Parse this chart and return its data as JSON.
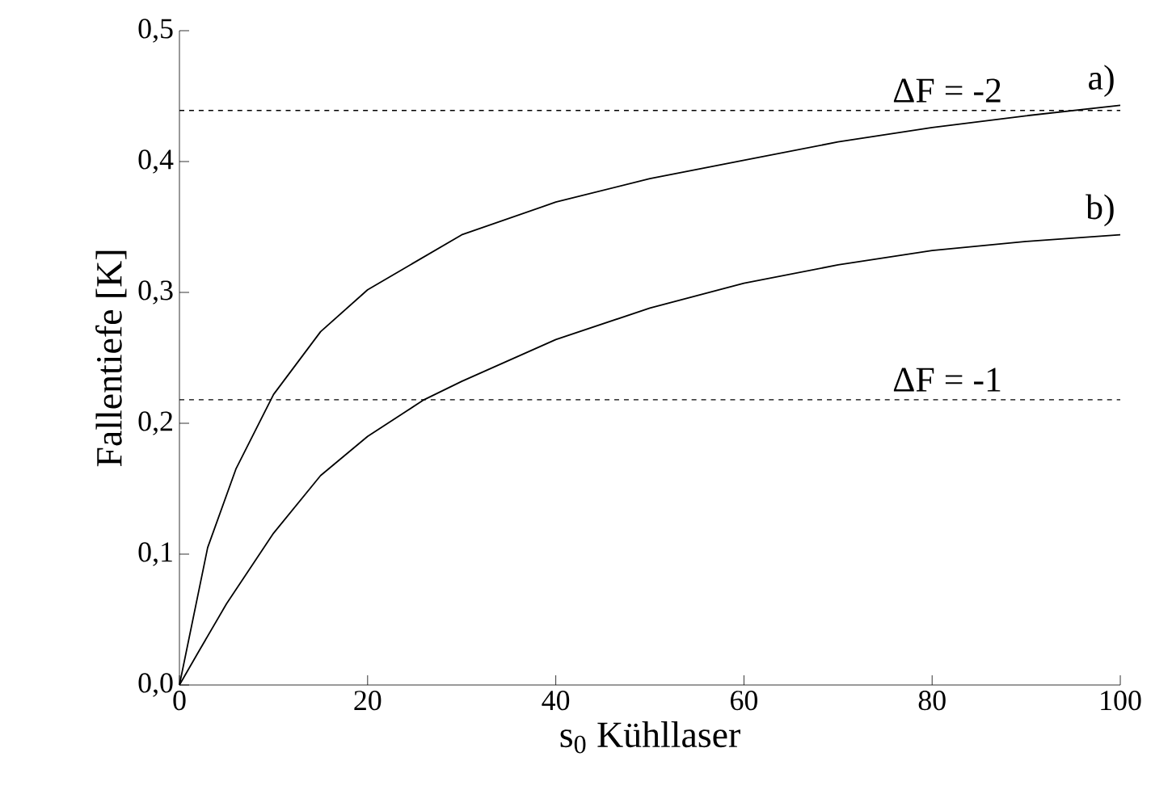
{
  "chart_data": {
    "type": "line",
    "xlabel": "s$_{0}$ Kühllaser",
    "ylabel": "Fallentiefe [K]",
    "xlim": [
      0,
      100
    ],
    "ylim": [
      0,
      0.5
    ],
    "xticks": [
      0,
      20,
      40,
      60,
      80,
      100
    ],
    "yticks": [
      {
        "value": 0,
        "label": "0,0"
      },
      {
        "value": 0.1,
        "label": "0,1"
      },
      {
        "value": 0.2,
        "label": "0,2"
      },
      {
        "value": 0.3,
        "label": "0,3"
      },
      {
        "value": 0.4,
        "label": "0,4"
      },
      {
        "value": 0.5,
        "label": "0,5"
      }
    ],
    "grid": false,
    "marker": "none",
    "line_style": "solid",
    "series": [
      {
        "name": "a)",
        "color": "#000000",
        "x": [
          0,
          3,
          6,
          10,
          15,
          20,
          30,
          40,
          50,
          60,
          70,
          80,
          90,
          100
        ],
        "values": [
          0,
          0.105,
          0.165,
          0.222,
          0.27,
          0.302,
          0.344,
          0.369,
          0.387,
          0.401,
          0.415,
          0.426,
          0.435,
          0.443
        ]
      },
      {
        "name": "b)",
        "color": "#000000",
        "x": [
          0,
          2,
          5,
          10,
          15,
          20,
          26,
          30,
          40,
          50,
          60,
          70,
          80,
          90,
          100
        ],
        "values": [
          0,
          0.025,
          0.062,
          0.116,
          0.16,
          0.19,
          0.218,
          0.232,
          0.264,
          0.288,
          0.307,
          0.321,
          0.332,
          0.339,
          0.344
        ]
      }
    ],
    "ref_lines": [
      {
        "axis": "y",
        "value": 0.439,
        "line_style": "dashed",
        "color": "#000000"
      },
      {
        "axis": "y",
        "value": 0.218,
        "line_style": "dashed",
        "color": "#000000"
      }
    ],
    "annotations": [
      {
        "text": "ΔF = -2",
        "x": 88,
        "y": 0.439
      },
      {
        "text": "ΔF = -1",
        "x": 88,
        "y": 0.218
      }
    ]
  }
}
